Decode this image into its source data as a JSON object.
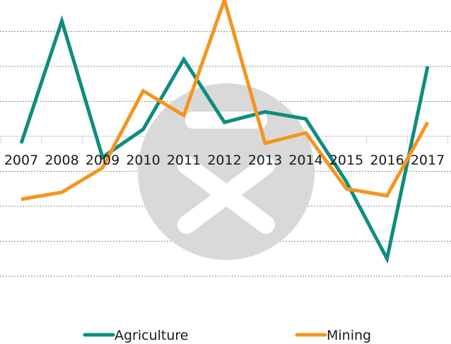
{
  "chart_data": {
    "type": "line",
    "title": "",
    "xlabel": "",
    "ylabel": "",
    "categories": [
      "2007",
      "2008",
      "2009",
      "2010",
      "2011",
      "2012",
      "2013",
      "2014",
      "2015",
      "2016",
      "2017"
    ],
    "ylim": [
      -4,
      4
    ],
    "grid": true,
    "legend_position": "bottom",
    "series": [
      {
        "name": "Agriculture",
        "color": "#0e8c7f",
        "values": [
          -0.2,
          3.3,
          -0.6,
          0.2,
          2.2,
          0.4,
          0.7,
          0.5,
          -1.3,
          -3.5,
          2.0
        ]
      },
      {
        "name": "Mining",
        "color": "#f7941d",
        "values": [
          -1.8,
          -1.6,
          -0.9,
          1.3,
          0.6,
          3.9,
          -0.2,
          0.1,
          -1.5,
          -1.7,
          0.4
        ]
      }
    ]
  },
  "watermark": {
    "icon": "close-x-icon",
    "color": "#d9d9d9"
  }
}
